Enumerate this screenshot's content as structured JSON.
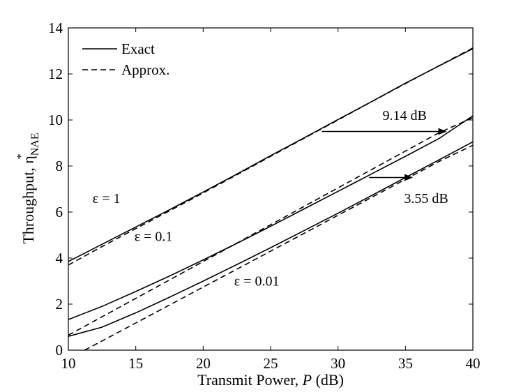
{
  "chart_data": {
    "type": "line",
    "xlabel_prefix": "Transmit Power, ",
    "xlabel_var": "P",
    "xlabel_unit": " (dB)",
    "ylabel_main": "Throughput, ",
    "ylabel_sym": "η",
    "ylabel_sub": "NAE",
    "ylabel_sup": "*",
    "xlim": [
      10,
      40
    ],
    "ylim": [
      0,
      14
    ],
    "xticks": [
      10,
      15,
      20,
      25,
      30,
      35,
      40
    ],
    "yticks": [
      0,
      2,
      4,
      6,
      8,
      10,
      12,
      14
    ],
    "grid": false,
    "legend_position": "top-left",
    "legend": [
      {
        "label": "Exact",
        "style": "solid"
      },
      {
        "label": "Approx.",
        "style": "dashed"
      }
    ],
    "series": [
      {
        "style": "solid",
        "x": [
          10,
          12.5,
          15,
          17.5,
          20,
          22.5,
          25,
          27.5,
          30,
          32.5,
          35,
          37.5,
          40
        ],
        "y": [
          3.85,
          4.6,
          5.35,
          6.1,
          6.87,
          7.65,
          8.45,
          9.23,
          10.02,
          10.8,
          11.6,
          12.35,
          13.1
        ]
      },
      {
        "style": "dashed",
        "x": [
          10,
          12.5,
          15,
          17.5,
          20,
          22.5,
          25,
          27.5,
          30,
          32.5,
          35,
          37.5,
          40
        ],
        "y": [
          3.7,
          4.5,
          5.28,
          6.05,
          6.83,
          7.62,
          8.42,
          9.21,
          10.0,
          10.8,
          11.58,
          12.36,
          13.13
        ]
      },
      {
        "style": "solid",
        "x": [
          10,
          12.5,
          15,
          17.5,
          20,
          22.5,
          25,
          27.5,
          30,
          32.5,
          35,
          37.5,
          40
        ],
        "y": [
          1.33,
          1.9,
          2.55,
          3.22,
          3.92,
          4.64,
          5.38,
          6.14,
          6.9,
          7.66,
          8.42,
          9.2,
          10.18
        ]
      },
      {
        "style": "dashed",
        "x": [
          10,
          12.5,
          15,
          17.5,
          20,
          22.5,
          25,
          27.5,
          30,
          32.5,
          35,
          37.5,
          40
        ],
        "y": [
          0.65,
          1.45,
          2.25,
          3.05,
          3.85,
          4.65,
          5.45,
          6.25,
          7.05,
          7.85,
          8.65,
          9.45,
          10.1
        ]
      },
      {
        "style": "solid",
        "x": [
          10,
          12.5,
          15,
          17.5,
          20,
          22.5,
          25,
          27.5,
          30,
          32.5,
          35,
          37.5,
          40
        ],
        "y": [
          0.6,
          1.0,
          1.62,
          2.3,
          3.0,
          3.72,
          4.45,
          5.2,
          5.95,
          6.72,
          7.5,
          8.27,
          9.05
        ]
      },
      {
        "style": "dashed",
        "x": [
          11.2,
          12.5,
          15,
          17.5,
          20,
          22.5,
          25,
          27.5,
          30,
          32.5,
          35,
          37.5,
          40
        ],
        "y": [
          0,
          0.4,
          1.18,
          1.96,
          2.74,
          3.52,
          4.3,
          5.08,
          5.86,
          6.64,
          7.42,
          8.2,
          8.9
        ]
      }
    ],
    "annotations": [
      {
        "text": "ε = 1",
        "x": 11.8,
        "y": 6.4
      },
      {
        "text": "ε = 0.1",
        "x": 14.9,
        "y": 4.75
      },
      {
        "text": "ε = 0.01",
        "x": 22.3,
        "y": 2.8
      },
      {
        "text": "9.14 dB",
        "x": 33.3,
        "y": 10.0
      },
      {
        "text": "3.55 dB",
        "x": 34.9,
        "y": 6.4
      }
    ],
    "arrows": [
      {
        "x1": 28.8,
        "y1": 9.5,
        "x2": 38.0,
        "y2": 9.5
      },
      {
        "x1": 32.3,
        "y1": 7.5,
        "x2": 35.5,
        "y2": 7.5
      }
    ]
  }
}
